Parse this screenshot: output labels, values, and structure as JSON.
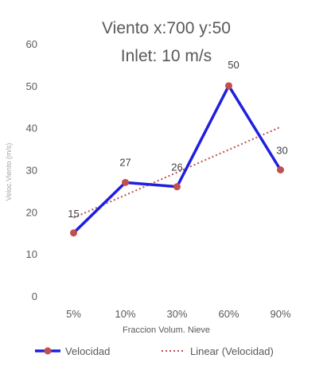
{
  "chart_data": {
    "type": "line",
    "title_line1": "Viento x:700 y:50",
    "title_line2": "Inlet: 10 m/s",
    "xlabel": "Fraccion Volum. Nieve",
    "ylabel": "Veloc.Viento (m/s)",
    "categories": [
      "5%",
      "10%",
      "30%",
      "60%",
      "90%"
    ],
    "ylim": [
      0,
      60
    ],
    "yticks": [
      "0",
      "10",
      "20",
      "30",
      "40",
      "50",
      "60"
    ],
    "grid": false,
    "legend_position": "bottom",
    "series": [
      {
        "name": "Velocidad",
        "values": [
          15,
          27,
          26,
          50,
          30
        ],
        "data_labels": [
          "15",
          "27",
          "26",
          "50",
          "30"
        ],
        "color": "#1f1fe0",
        "marker_color": "#c0504d"
      }
    ],
    "trendline": {
      "name": "Linear (Velocidad)",
      "type": "linear",
      "color": "#c0504d",
      "start": 18.6,
      "end": 40.2
    }
  }
}
